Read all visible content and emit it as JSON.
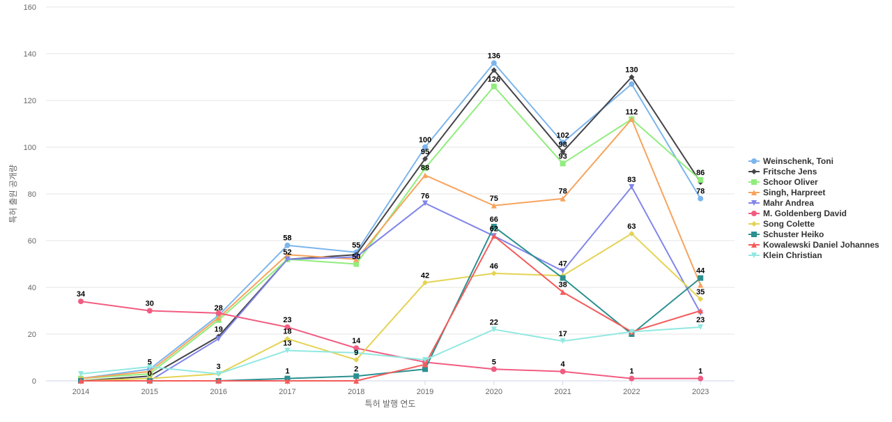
{
  "chart_data": {
    "type": "line",
    "xlabel": "특허 발행 연도",
    "ylabel": "특허 출원 공개량",
    "ylim": [
      0,
      160
    ],
    "yticks": [
      0,
      20,
      40,
      60,
      80,
      100,
      120,
      140,
      160
    ],
    "grid": true,
    "legend_position": "right",
    "categories": [
      "2014",
      "2015",
      "2016",
      "2017",
      "2018",
      "2019",
      "2020",
      "2021",
      "2022",
      "2023"
    ],
    "series": [
      {
        "name": "Weinschenk, Toni",
        "color": "#7cb5ec",
        "marker": "circle",
        "values": [
          1,
          5,
          28,
          58,
          55,
          100,
          136,
          102,
          127,
          78
        ],
        "labels": [
          false,
          true,
          true,
          true,
          true,
          true,
          true,
          true,
          false,
          true
        ]
      },
      {
        "name": "Fritsche Jens",
        "color": "#434348",
        "marker": "diamond",
        "values": [
          0,
          2,
          19,
          52,
          54,
          95,
          133,
          98,
          130,
          85
        ],
        "labels": [
          false,
          false,
          true,
          true,
          false,
          true,
          false,
          true,
          true,
          false
        ]
      },
      {
        "name": "Schoor Oliver",
        "color": "#90ed7d",
        "marker": "square",
        "values": [
          1,
          3,
          26,
          52,
          50,
          91,
          126,
          93,
          112,
          86
        ],
        "labels": [
          false,
          false,
          false,
          false,
          true,
          false,
          true,
          true,
          false,
          true
        ]
      },
      {
        "name": "Singh, Harpreet",
        "color": "#f7a35c",
        "marker": "triangle",
        "values": [
          1,
          4,
          27,
          54,
          52,
          88,
          75,
          78,
          112,
          41
        ],
        "labels": [
          false,
          false,
          false,
          false,
          false,
          true,
          true,
          true,
          true,
          false
        ]
      },
      {
        "name": "Mahr Andrea",
        "color": "#8085e9",
        "marker": "triangle-down",
        "values": [
          0,
          0,
          18,
          52,
          53,
          76,
          62,
          47,
          83,
          29
        ],
        "labels": [
          false,
          false,
          false,
          false,
          false,
          true,
          false,
          true,
          true,
          false
        ]
      },
      {
        "name": "M. Goldenberg David",
        "color": "#f15c80",
        "marker": "circle",
        "values": [
          34,
          30,
          29,
          23,
          14,
          8,
          5,
          4,
          1,
          1
        ],
        "labels": [
          true,
          true,
          false,
          true,
          true,
          false,
          true,
          true,
          true,
          true
        ]
      },
      {
        "name": "Song Colette",
        "color": "#e4d354",
        "marker": "diamond",
        "values": [
          0,
          1,
          3,
          18,
          9,
          42,
          46,
          45,
          63,
          35
        ],
        "labels": [
          false,
          false,
          true,
          true,
          true,
          true,
          true,
          false,
          true,
          true
        ]
      },
      {
        "name": "Schuster Heiko",
        "color": "#2b908f",
        "marker": "square",
        "values": [
          0,
          0,
          0,
          1,
          2,
          5,
          66,
          44,
          20,
          44
        ],
        "labels": [
          false,
          true,
          false,
          true,
          true,
          false,
          true,
          false,
          false,
          true
        ]
      },
      {
        "name": "Kowalewski Daniel Johannes",
        "color": "#f45b5b",
        "marker": "triangle",
        "values": [
          0,
          0,
          0,
          0,
          0,
          7,
          62,
          38,
          21,
          30
        ],
        "labels": [
          false,
          false,
          false,
          false,
          false,
          false,
          true,
          true,
          false,
          false
        ]
      },
      {
        "name": "Klein Christian",
        "color": "#91e8e1",
        "marker": "triangle-down",
        "values": [
          3,
          6,
          3,
          13,
          12,
          9,
          22,
          17,
          21,
          23
        ],
        "labels": [
          false,
          false,
          false,
          true,
          false,
          false,
          true,
          true,
          false,
          true
        ]
      }
    ]
  }
}
